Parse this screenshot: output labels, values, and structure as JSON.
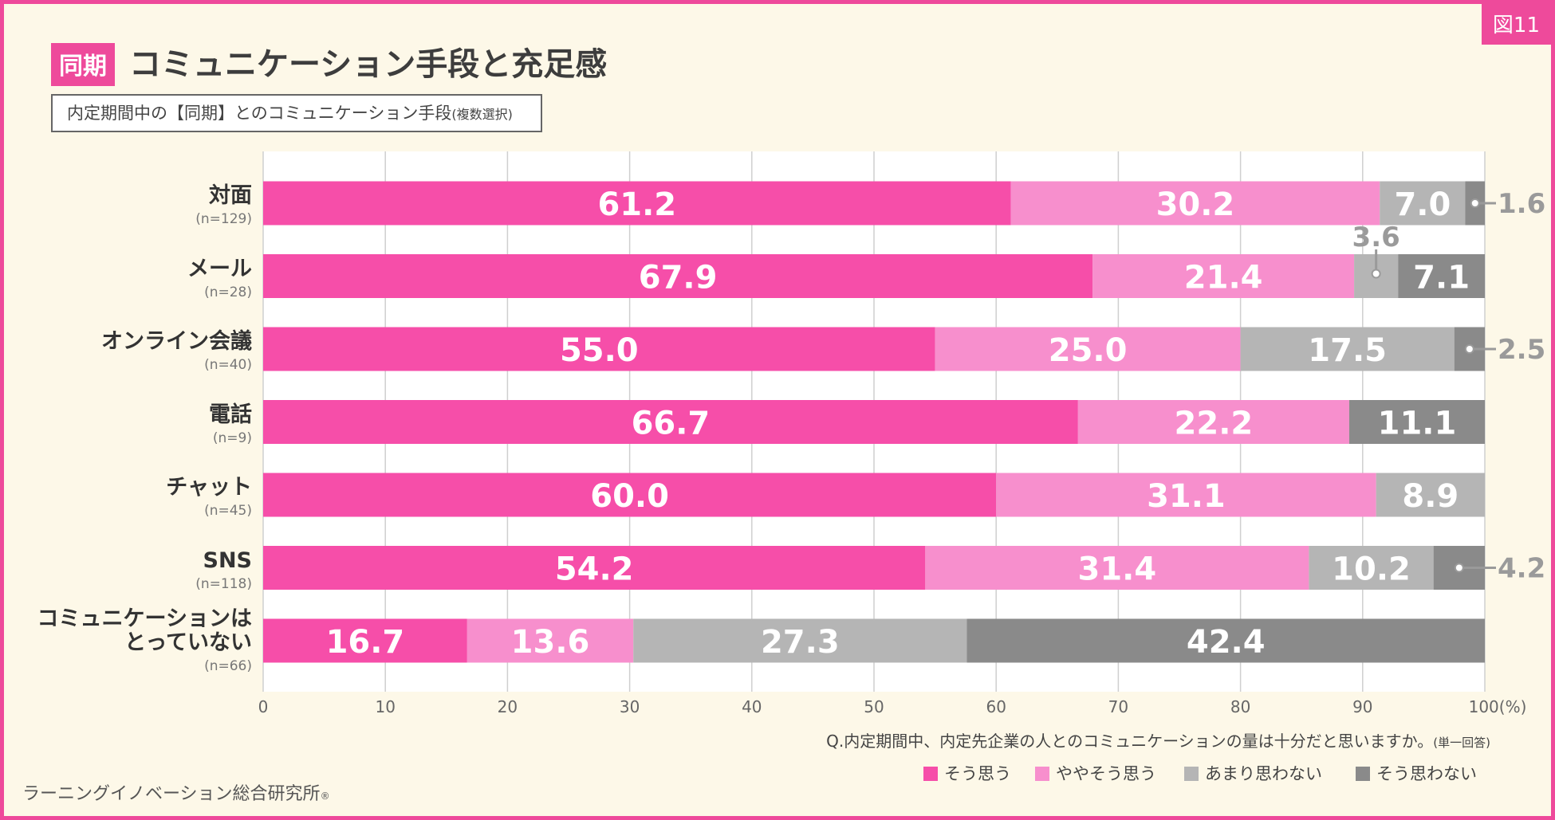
{
  "figure_number": "図11",
  "title_tag": "同期",
  "title": "コミュニケーション手段と充足感",
  "subtitle": "内定期間中の【同期】とのコミュニケーション手段",
  "subtitle_note": "(複数選択)",
  "question": "Q.内定期間中、内定先企業の人とのコミュニケーションの量は十分だと思いますか。",
  "question_note": "(単一回答)",
  "credit": "ラーニングイノベーション総合研究所",
  "credit_mark": "®",
  "colors": {
    "accent": "#ee4a9b",
    "series": [
      "#f64ea9",
      "#f78fcd",
      "#b5b5b5",
      "#8a8a8a"
    ]
  },
  "chart_data": {
    "type": "bar",
    "orientation": "horizontal",
    "stacked": true,
    "categories": [
      {
        "label": "対面",
        "n": "(n=129)"
      },
      {
        "label": "メール",
        "n": "(n=28)"
      },
      {
        "label": "オンライン会議",
        "n": "(n=40)"
      },
      {
        "label": "電話",
        "n": "(n=9)"
      },
      {
        "label": "チャット",
        "n": "(n=45)"
      },
      {
        "label": "SNS",
        "n": "(n=118)"
      },
      {
        "label": "コミュニケーションは\nとっていない",
        "n": "(n=66)"
      }
    ],
    "series": [
      {
        "name": "そう思う",
        "values": [
          61.2,
          67.9,
          55.0,
          66.7,
          60.0,
          54.2,
          16.7
        ]
      },
      {
        "name": "ややそう思う",
        "values": [
          30.2,
          21.4,
          25.0,
          22.2,
          31.1,
          31.4,
          13.6
        ]
      },
      {
        "name": "あまり思わない",
        "values": [
          7.0,
          3.6,
          17.5,
          0,
          8.9,
          10.2,
          27.3
        ]
      },
      {
        "name": "そう思わない",
        "values": [
          1.6,
          7.1,
          2.5,
          11.1,
          0,
          4.2,
          42.4
        ]
      }
    ],
    "xlim": [
      0,
      100
    ],
    "xticks": [
      "0",
      "10",
      "20",
      "30",
      "40",
      "50",
      "60",
      "70",
      "80",
      "90",
      "100"
    ],
    "x_unit": "(%)",
    "grid": true,
    "legend_position": "bottom-right"
  }
}
